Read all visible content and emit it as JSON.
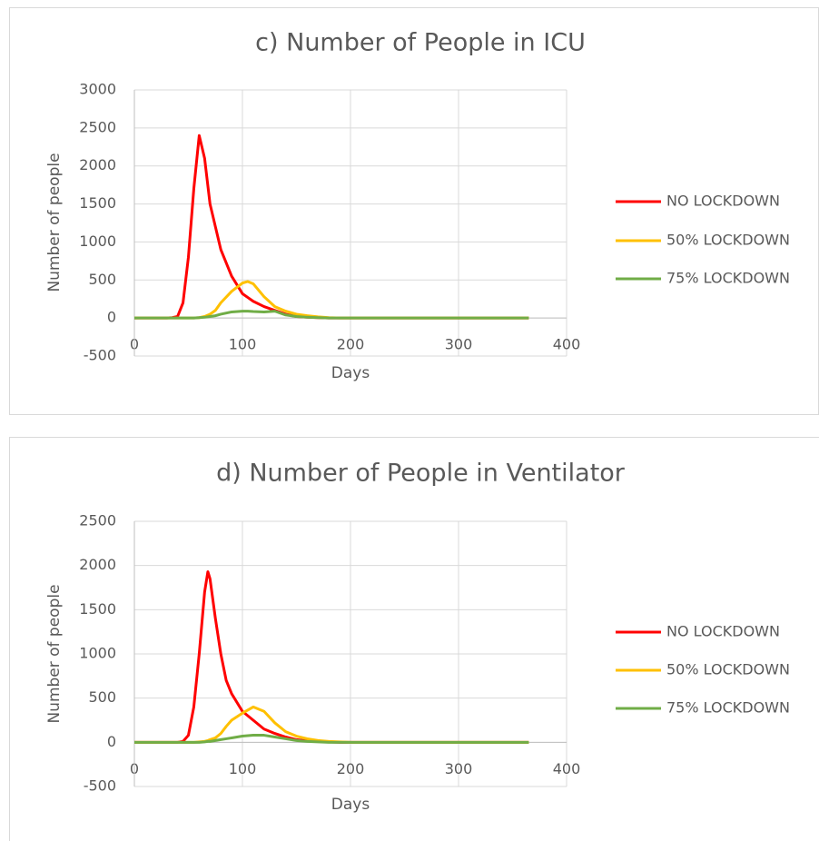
{
  "chart_data": [
    {
      "type": "line",
      "title": "c) Number of People in ICU",
      "x_label": "Days",
      "y_label": "Number of people",
      "x": [
        0,
        10,
        20,
        30,
        35,
        40,
        45,
        50,
        55,
        60,
        65,
        70,
        75,
        80,
        90,
        100,
        105,
        110,
        120,
        130,
        140,
        150,
        160,
        170,
        180,
        190,
        200,
        250,
        300,
        365
      ],
      "series": [
        {
          "name": "NO LOCKDOWN",
          "color": "#ff0000",
          "values": [
            0,
            0,
            0,
            0,
            5,
            20,
            200,
            800,
            1700,
            2400,
            2100,
            1500,
            1200,
            900,
            550,
            320,
            270,
            220,
            150,
            100,
            50,
            20,
            10,
            5,
            0,
            0,
            0,
            0,
            0,
            0
          ]
        },
        {
          "name": "50% LOCKDOWN",
          "color": "#ffc000",
          "values": [
            0,
            0,
            0,
            0,
            0,
            0,
            0,
            0,
            0,
            5,
            20,
            50,
            100,
            200,
            350,
            460,
            480,
            450,
            280,
            150,
            90,
            50,
            30,
            15,
            5,
            0,
            0,
            0,
            0,
            0
          ]
        },
        {
          "name": "75% LOCKDOWN",
          "color": "#70ad47",
          "values": [
            0,
            0,
            0,
            0,
            0,
            0,
            0,
            0,
            0,
            5,
            10,
            20,
            30,
            50,
            80,
            90,
            90,
            85,
            80,
            90,
            40,
            20,
            10,
            5,
            0,
            0,
            0,
            0,
            0,
            0
          ]
        }
      ],
      "xlim": [
        0,
        400
      ],
      "xticks": [
        0,
        100,
        200,
        300,
        400
      ],
      "ylim": [
        -500,
        3000
      ],
      "yticks": [
        -500,
        0,
        500,
        1000,
        1500,
        2000,
        2500,
        3000
      ],
      "grid": true,
      "legend": "right"
    },
    {
      "type": "line",
      "title": "d) Number of People in Ventilator",
      "x_label": "Days",
      "y_label": "Number of people",
      "x": [
        0,
        10,
        20,
        30,
        40,
        45,
        50,
        55,
        60,
        65,
        68,
        70,
        75,
        80,
        85,
        90,
        100,
        110,
        120,
        130,
        140,
        150,
        160,
        170,
        180,
        190,
        200,
        250,
        300,
        365
      ],
      "series": [
        {
          "name": "NO LOCKDOWN",
          "color": "#ff0000",
          "values": [
            0,
            0,
            0,
            0,
            0,
            10,
            80,
            400,
            1000,
            1700,
            1930,
            1850,
            1400,
            1000,
            700,
            550,
            350,
            250,
            150,
            100,
            60,
            30,
            15,
            10,
            5,
            0,
            0,
            0,
            0,
            0
          ]
        },
        {
          "name": "50% LOCKDOWN",
          "color": "#ffc000",
          "values": [
            0,
            0,
            0,
            0,
            0,
            0,
            0,
            0,
            5,
            10,
            20,
            30,
            50,
            100,
            180,
            250,
            330,
            400,
            350,
            220,
            120,
            70,
            40,
            20,
            10,
            5,
            0,
            0,
            0,
            0
          ]
        },
        {
          "name": "75% LOCKDOWN",
          "color": "#70ad47",
          "values": [
            0,
            0,
            0,
            0,
            0,
            0,
            0,
            0,
            0,
            5,
            10,
            10,
            20,
            30,
            40,
            50,
            70,
            80,
            80,
            60,
            40,
            20,
            10,
            5,
            0,
            0,
            0,
            0,
            0,
            0
          ]
        }
      ],
      "xlim": [
        0,
        400
      ],
      "xticks": [
        0,
        100,
        200,
        300,
        400
      ],
      "ylim": [
        -500,
        2500
      ],
      "yticks": [
        -500,
        0,
        500,
        1000,
        1500,
        2000,
        2500
      ],
      "grid": true,
      "legend": "right"
    }
  ]
}
